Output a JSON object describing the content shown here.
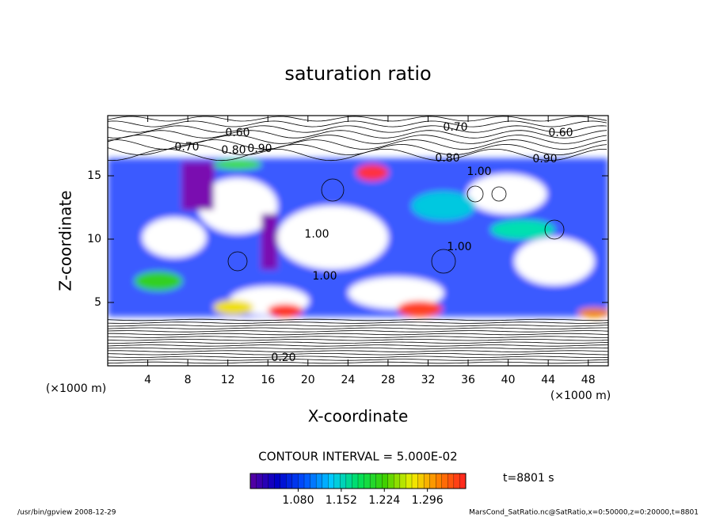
{
  "chart_data": {
    "type": "contour",
    "title": "saturation ratio",
    "x_label": "X-coordinate",
    "y_label": "Z-coordinate",
    "x_unit": "(×1000 m)",
    "y_unit": "(×1000 m)",
    "xlim": [
      0,
      50
    ],
    "ylim": [
      0,
      20
    ],
    "xticks": [
      4,
      8,
      12,
      16,
      20,
      24,
      28,
      32,
      36,
      40,
      44,
      48
    ],
    "yticks": [
      5,
      10,
      15
    ],
    "contour_interval": "CONTOUR INTERVAL = 5.000E-02",
    "contour_labels": [
      "0.60",
      "0.70",
      "0.80",
      "0.90",
      "0.70",
      "0.60",
      "0.80",
      "1.00",
      "0.90",
      "1.00",
      "1.00",
      "1.00",
      "0.20"
    ],
    "time_label": "t=8801 s",
    "colorbar": {
      "lim": [
        1.0,
        1.36
      ],
      "ticks": [
        {
          "value": 1.08,
          "label": "1.080"
        },
        {
          "value": 1.152,
          "label": "1.152"
        },
        {
          "value": 1.224,
          "label": "1.224"
        },
        {
          "value": 1.296,
          "label": "1.296"
        }
      ],
      "colors": [
        "#5a00a0",
        "#0000c8",
        "#0050ff",
        "#00c8ff",
        "#00e060",
        "#40d000",
        "#f0f000",
        "#ff8000",
        "#ff2020"
      ]
    },
    "footer_left": "/usr/bin/gpview   2008-12-29",
    "footer_right": "MarsCond_SatRatio.nc@SatRatio,x=0:50000,z=0:20000,t=8801"
  }
}
